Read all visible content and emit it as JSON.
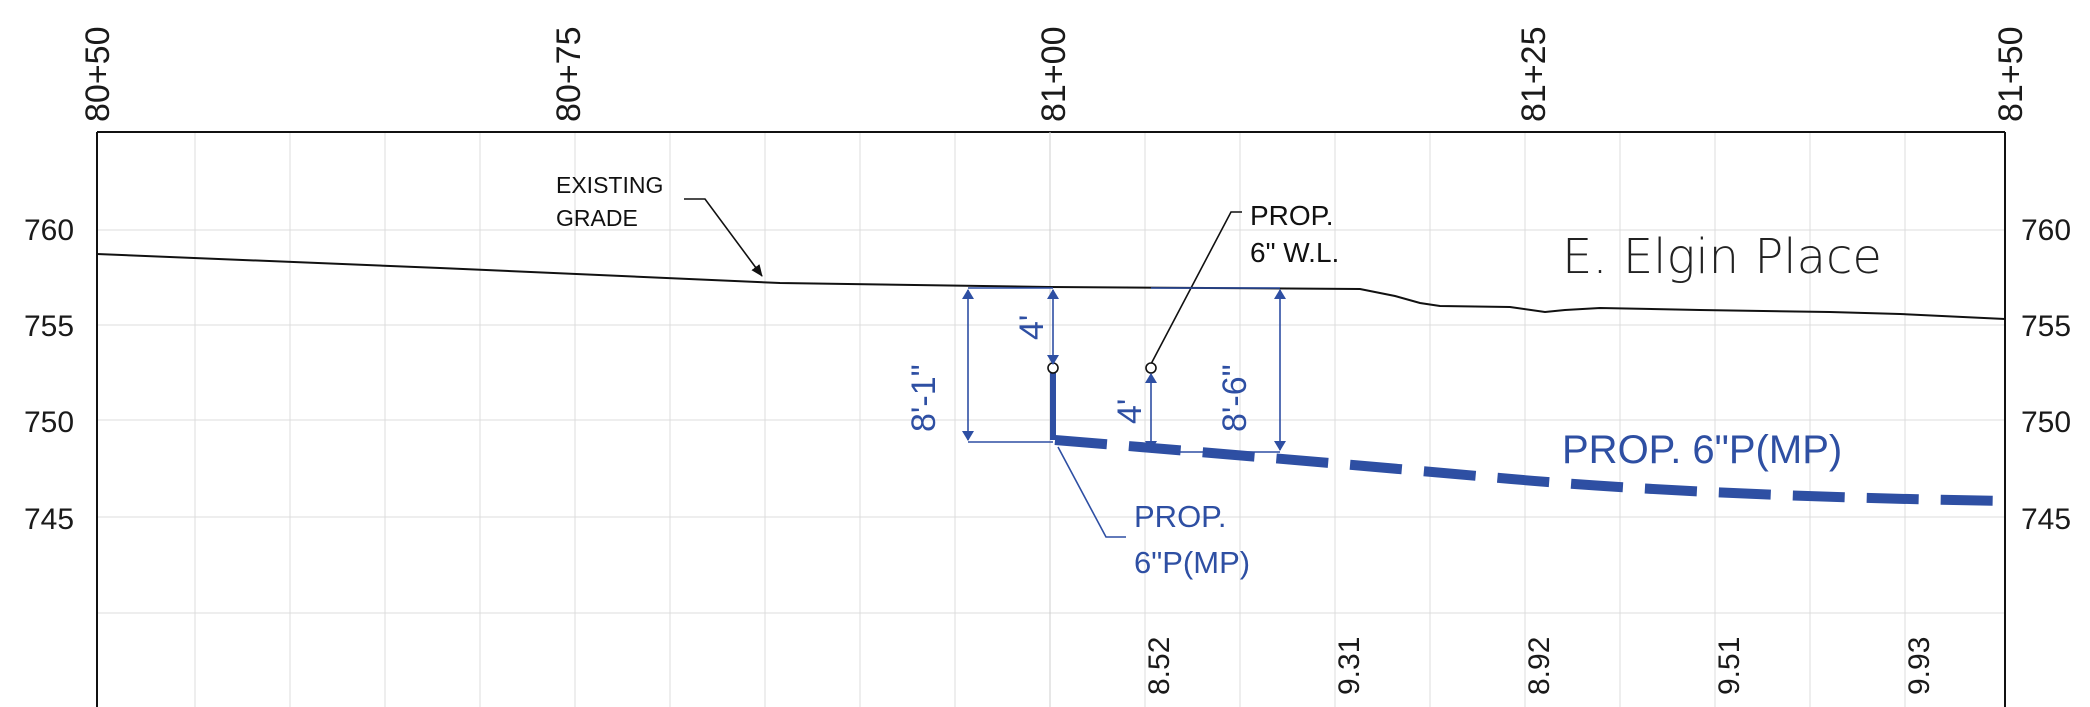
{
  "stations": [
    "80+50",
    "80+75",
    "81+00",
    "81+25",
    "81+50"
  ],
  "elevations": {
    "left": [
      "760",
      "755",
      "750",
      "745"
    ],
    "right": [
      "760",
      "755",
      "750",
      "745"
    ]
  },
  "existing_grade_label": {
    "line1": "EXISTING",
    "line2": "GRADE"
  },
  "street_name": "E. Elgin Place",
  "water_line_label": {
    "line1": "PROP.",
    "line2": "6\" W.L."
  },
  "main_pipe_label": "PROP. 6\"P(MP)",
  "service_label": {
    "line1": "PROP.",
    "line2": "6\"P(MP)"
  },
  "dimensions": {
    "depth_left": "8'-1\"",
    "cover_left": "4'",
    "cover_right": "4'",
    "depth_right": "8'-6\""
  },
  "bottom_values": [
    "8.52",
    "9.31",
    "8.92",
    "9.51",
    "9.93"
  ],
  "colors": {
    "linework": "#111111",
    "proposed": "#2e4fa3",
    "grid": "#d9d9d9"
  }
}
